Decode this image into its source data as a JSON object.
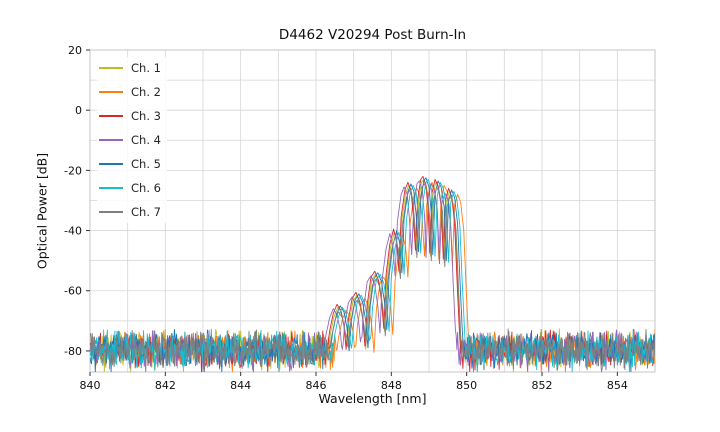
{
  "chart_data": {
    "type": "line",
    "title": "D4462 V20294 Post Burn-In",
    "xlabel": "Wavelength [nm]",
    "ylabel": "Optical Power [dB]",
    "xlim": [
      840,
      855
    ],
    "ylim": [
      -87,
      20
    ],
    "xticks": [
      840,
      842,
      844,
      846,
      848,
      850,
      852,
      854
    ],
    "yticks": [
      20,
      0,
      -20,
      -40,
      -60,
      -80
    ],
    "grid": {
      "on": true,
      "x_step_nm": 1,
      "y_step_dB": 10,
      "color": "#d6d6d6"
    },
    "legend_position": "upper left",
    "peak_power_dB": -22.5,
    "peak_wavelength_nm": 848.9,
    "signal_band_nm": [
      846.4,
      850.1
    ],
    "sample_step_nm": 0.02,
    "noise": {
      "floor_dB": -79.5,
      "amplitude_dB": 7,
      "seed": 42
    },
    "envelope_dB": [
      [
        846.3,
        -86
      ],
      [
        846.42,
        -74
      ],
      [
        846.52,
        -68
      ],
      [
        846.62,
        -65
      ],
      [
        846.72,
        -67
      ],
      [
        846.8,
        -72
      ],
      [
        846.86,
        -80
      ],
      [
        846.92,
        -70
      ],
      [
        847.02,
        -63
      ],
      [
        847.12,
        -61
      ],
      [
        847.22,
        -64
      ],
      [
        847.3,
        -70
      ],
      [
        847.36,
        -79
      ],
      [
        847.42,
        -65
      ],
      [
        847.52,
        -56
      ],
      [
        847.62,
        -54
      ],
      [
        847.72,
        -57
      ],
      [
        847.8,
        -64
      ],
      [
        847.86,
        -73
      ],
      [
        847.92,
        -55
      ],
      [
        848.02,
        -45
      ],
      [
        848.12,
        -40
      ],
      [
        848.2,
        -44
      ],
      [
        848.26,
        -54
      ],
      [
        848.32,
        -36
      ],
      [
        848.42,
        -27
      ],
      [
        848.5,
        -24.5
      ],
      [
        848.58,
        -27
      ],
      [
        848.64,
        -35
      ],
      [
        848.7,
        -47
      ],
      [
        848.76,
        -30
      ],
      [
        848.84,
        -23.5
      ],
      [
        848.9,
        -22.5
      ],
      [
        848.98,
        -25.5
      ],
      [
        849.04,
        -34
      ],
      [
        849.08,
        -48
      ],
      [
        849.14,
        -28
      ],
      [
        849.22,
        -23.5
      ],
      [
        849.3,
        -25.5
      ],
      [
        849.38,
        -32
      ],
      [
        849.44,
        -50
      ],
      [
        849.5,
        -30
      ],
      [
        849.58,
        -26.5
      ],
      [
        849.66,
        -29
      ],
      [
        849.74,
        -38
      ],
      [
        849.8,
        -56
      ],
      [
        849.86,
        -72
      ],
      [
        849.92,
        -86
      ]
    ],
    "series": [
      {
        "name": "Ch. 1",
        "color": "#bcbd22",
        "offset_nm": -0.04,
        "level_dB": -0.5
      },
      {
        "name": "Ch. 2",
        "color": "#ff7f0e",
        "offset_nm": 0.18,
        "level_dB": -1.5
      },
      {
        "name": "Ch. 3",
        "color": "#d62728",
        "offset_nm": -0.06,
        "level_dB": 0.5
      },
      {
        "name": "Ch. 4",
        "color": "#9467bd",
        "offset_nm": -0.16,
        "level_dB": -1.0
      },
      {
        "name": "Ch. 5",
        "color": "#1f77b4",
        "offset_nm": 0.02,
        "level_dB": 0.0
      },
      {
        "name": "Ch. 6",
        "color": "#17becf",
        "offset_nm": 0.08,
        "level_dB": -0.5
      },
      {
        "name": "Ch. 7",
        "color": "#7f7f7f",
        "offset_nm": -0.02,
        "level_dB": -2.0
      }
    ]
  }
}
